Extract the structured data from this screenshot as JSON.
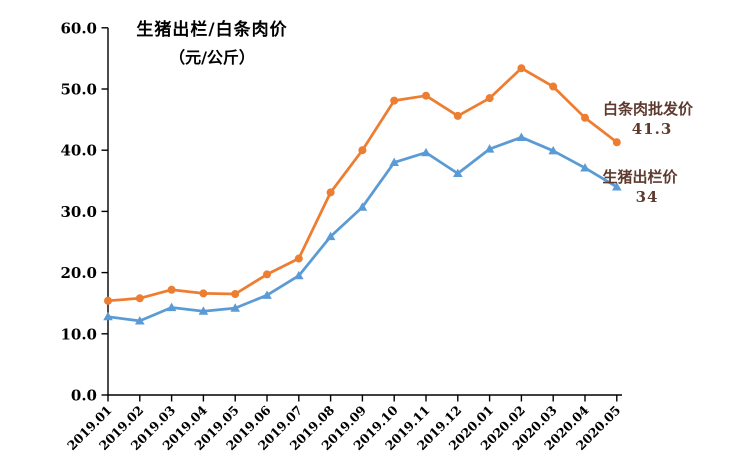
{
  "chart_data": {
    "type": "line",
    "title": "生猪出栏/白条肉价",
    "subtitle": "（元/公斤）",
    "categories": [
      "2019.01",
      "2019.02",
      "2019.03",
      "2019.04",
      "2019.05",
      "2019.06",
      "2019.07",
      "2019.08",
      "2019.09",
      "2019.10",
      "2019.11",
      "2019.12",
      "2020.01",
      "2020.02",
      "2020.03",
      "2020.04",
      "2020.05"
    ],
    "series": [
      {
        "name": "白条肉批发价",
        "end_label_value": "41.3",
        "color": "#ED7D31",
        "marker": "circle",
        "values": [
          15.4,
          15.8,
          17.2,
          16.6,
          16.5,
          19.7,
          22.3,
          33.1,
          40.0,
          48.1,
          48.9,
          45.6,
          48.5,
          53.4,
          50.4,
          45.3,
          41.3
        ]
      },
      {
        "name": "生猪出栏价",
        "end_label_value": "34",
        "color": "#5B9BD5",
        "marker": "triangle-up",
        "values": [
          12.8,
          12.1,
          14.3,
          13.7,
          14.2,
          16.3,
          19.5,
          25.9,
          30.7,
          38.0,
          39.6,
          36.2,
          40.2,
          42.1,
          39.9,
          37.1,
          34.0
        ]
      }
    ],
    "xlabel": "",
    "ylabel": "",
    "ylim": [
      0,
      60
    ],
    "y_tick_step": 10,
    "y_tick_labels": [
      "0.0",
      "10.0",
      "20.0",
      "30.0",
      "40.0",
      "50.0",
      "60.0"
    ],
    "grid": false,
    "legend_position": "end-of-line-labels"
  },
  "colors": {
    "background": "#FFFFFF",
    "axis": "#000000",
    "title_text": "#000000",
    "tick_label_text": "#000000",
    "series_label_text": "#5E3A2E",
    "wholesale_line": "#ED7D31",
    "livehog_line": "#5B9BD5"
  }
}
